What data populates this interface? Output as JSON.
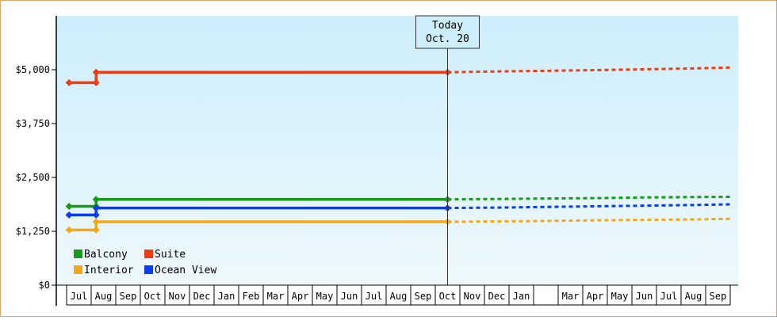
{
  "chart_data": {
    "type": "line",
    "title": "",
    "xlabel": "",
    "ylabel": "",
    "ylim": [
      0,
      6250
    ],
    "yticks": [
      0,
      1250,
      2500,
      3750,
      5000
    ],
    "ytick_labels": [
      "$0",
      "$1,250",
      "$2,500",
      "$3,750",
      "$5,000"
    ],
    "x_categories": [
      "Jul",
      "Aug",
      "Sep",
      "Oct",
      "Nov",
      "Dec",
      "Jan",
      "Feb",
      "Mar",
      "Apr",
      "May",
      "Jun",
      "Jul",
      "Aug",
      "Sep",
      "Oct",
      "Nov",
      "Dec",
      "Jan",
      "",
      "Mar",
      "Apr",
      "May",
      "Jun",
      "Jul",
      "Aug",
      "Sep"
    ],
    "today_index": 15,
    "today_label_line1": "Today",
    "today_label_line2": "Oct. 20",
    "series": [
      {
        "name": "Balcony",
        "color": "#169b16",
        "history": [
          [
            -0.4,
            1830
          ],
          [
            0.7,
            1830
          ],
          [
            0.7,
            1990
          ],
          [
            15,
            1990
          ]
        ],
        "markers": [
          [
            -0.4,
            1830
          ],
          [
            0.7,
            1830
          ],
          [
            0.7,
            1990
          ],
          [
            15,
            1990
          ]
        ],
        "forecast": [
          [
            15,
            1990
          ],
          [
            17,
            2000
          ],
          [
            19,
            2010
          ],
          [
            21,
            2020
          ],
          [
            23,
            2035
          ],
          [
            25,
            2045
          ],
          [
            26.5,
            2050
          ]
        ]
      },
      {
        "name": "Suite",
        "color": "#f03c14",
        "history": [
          [
            -0.4,
            4700
          ],
          [
            0.7,
            4700
          ],
          [
            0.7,
            4940
          ],
          [
            15,
            4940
          ]
        ],
        "markers": [
          [
            -0.4,
            4700
          ],
          [
            0.7,
            4700
          ],
          [
            0.7,
            4940
          ],
          [
            15,
            4940
          ]
        ],
        "forecast": [
          [
            15,
            4940
          ],
          [
            17,
            4960
          ],
          [
            19,
            4975
          ],
          [
            21,
            4990
          ],
          [
            23,
            5010
          ],
          [
            25,
            5030
          ],
          [
            26.5,
            5050
          ]
        ]
      },
      {
        "name": "Interior",
        "color": "#f5a814",
        "history": [
          [
            -0.4,
            1280
          ],
          [
            0.7,
            1280
          ],
          [
            0.7,
            1470
          ],
          [
            15,
            1470
          ]
        ],
        "markers": [
          [
            -0.4,
            1280
          ],
          [
            0.7,
            1280
          ],
          [
            0.7,
            1470
          ],
          [
            15,
            1470
          ]
        ],
        "forecast": [
          [
            15,
            1470
          ],
          [
            17,
            1480
          ],
          [
            19,
            1490
          ],
          [
            21,
            1505
          ],
          [
            23,
            1515
          ],
          [
            25,
            1525
          ],
          [
            26.5,
            1540
          ]
        ]
      },
      {
        "name": "Ocean View",
        "color": "#0a3cf0",
        "history": [
          [
            -0.4,
            1630
          ],
          [
            0.7,
            1630
          ],
          [
            0.7,
            1790
          ],
          [
            15,
            1790
          ]
        ],
        "markers": [
          [
            -0.4,
            1630
          ],
          [
            0.7,
            1630
          ],
          [
            0.7,
            1790
          ],
          [
            15,
            1790
          ]
        ],
        "forecast": [
          [
            15,
            1790
          ],
          [
            17,
            1800
          ],
          [
            19,
            1815
          ],
          [
            21,
            1830
          ],
          [
            23,
            1845
          ],
          [
            25,
            1860
          ],
          [
            26.5,
            1875
          ]
        ]
      }
    ],
    "legend": {
      "placement": "bottom-left",
      "entries": [
        "Balcony",
        "Suite",
        "Interior",
        "Ocean View"
      ]
    },
    "background_gradient": [
      "#cdeefb",
      "#eef8fd"
    ],
    "grid": false
  }
}
